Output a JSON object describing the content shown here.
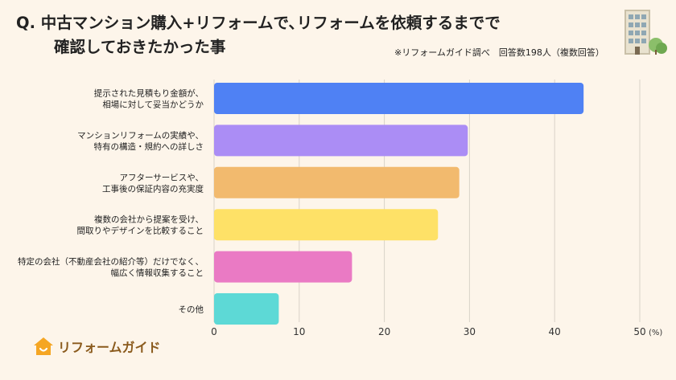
{
  "title": {
    "line1": "Q.  中古マンション購入+リフォームで､リフォームを依頼するまでで",
    "line2": "確認しておきたかった事"
  },
  "source": "※リフォームガイド調べ　回答数198人（複数回答）",
  "logo": {
    "text": "リフォームガイド",
    "icon": "house-icon",
    "color": "#f5a623"
  },
  "colors": {
    "background": "#fdf5ea",
    "grid": "#d9d2c8"
  },
  "chart_data": {
    "type": "bar",
    "orientation": "horizontal",
    "categories": [
      [
        "提示された見積もり金額が、",
        "相場に対して妥当かどうか"
      ],
      [
        "マンションリフォームの実績や、",
        "特有の構造・規約への詳しさ"
      ],
      [
        "アフターサービスや、",
        "工事後の保証内容の充実度"
      ],
      [
        "複数の会社から提案を受け、",
        "間取りやデザインを比較すること"
      ],
      [
        "特定の会社（不動産会社の紹介等）だけでなく、",
        "幅広く情報収集すること"
      ],
      [
        "その他"
      ]
    ],
    "values": [
      43.4,
      29.8,
      28.8,
      26.3,
      16.2,
      7.6
    ],
    "colors": [
      "#4f81f4",
      "#ab8df5",
      "#f2ba6e",
      "#fee167",
      "#ea7ac4",
      "#5dd9d6"
    ],
    "xlim": [
      0,
      50
    ],
    "xticks": [
      0,
      10,
      20,
      30,
      40,
      50
    ],
    "unit": "(%)",
    "grid": true
  }
}
